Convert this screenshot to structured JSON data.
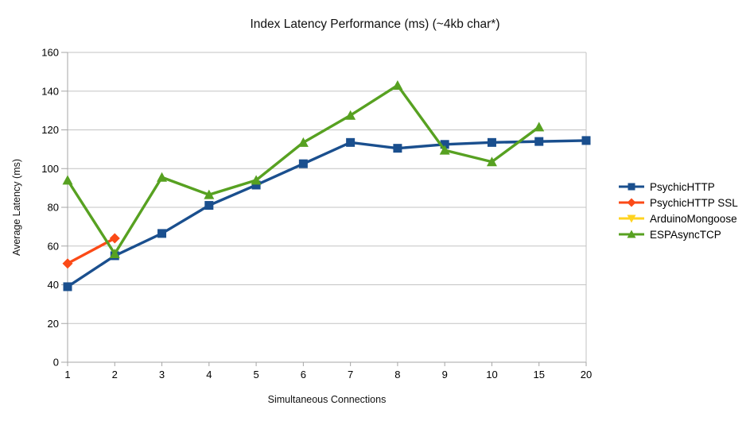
{
  "title": "Index Latency Performance (ms) (~4kb char*)",
  "chart_data": {
    "type": "line",
    "title": "Index Latency Performance (ms) (~4kb char*)",
    "xlabel": "Simultaneous Connections",
    "ylabel": "Average Latency (ms)",
    "categories": [
      "1",
      "2",
      "3",
      "4",
      "5",
      "6",
      "7",
      "8",
      "9",
      "10",
      "15",
      "20"
    ],
    "ylim": [
      0,
      160
    ],
    "yticks": [
      0,
      20,
      40,
      60,
      80,
      100,
      120,
      140,
      160
    ],
    "grid": true,
    "legend_position": "right",
    "series": [
      {
        "name": "PsychicHTTP",
        "color": "#1A4F8E",
        "marker": "square",
        "values": [
          39,
          55,
          66.5,
          81,
          91.5,
          102.5,
          113.5,
          110.5,
          112.5,
          113.5,
          114,
          114.5
        ]
      },
      {
        "name": "PsychicHTTP SSL",
        "color": "#FB4A17",
        "marker": "diamond",
        "values": [
          51,
          64,
          null,
          null,
          null,
          null,
          null,
          null,
          null,
          null,
          null,
          null
        ]
      },
      {
        "name": "ArduinoMongoose",
        "color": "#FFD320",
        "marker": "triangle-down",
        "values": [
          null,
          null,
          null,
          null,
          null,
          null,
          null,
          null,
          null,
          null,
          null,
          null
        ]
      },
      {
        "name": "ESPAsyncTCP",
        "color": "#57A121",
        "marker": "triangle-up",
        "values": [
          94,
          56,
          95.5,
          86.5,
          94,
          113.5,
          127.5,
          143,
          109.5,
          103.5,
          121.5,
          null
        ]
      }
    ],
    "colors": {
      "background": "#FFFFFF",
      "grid": "#C3C3C3",
      "axis": "#A6A6A6",
      "text": "#000000"
    }
  }
}
